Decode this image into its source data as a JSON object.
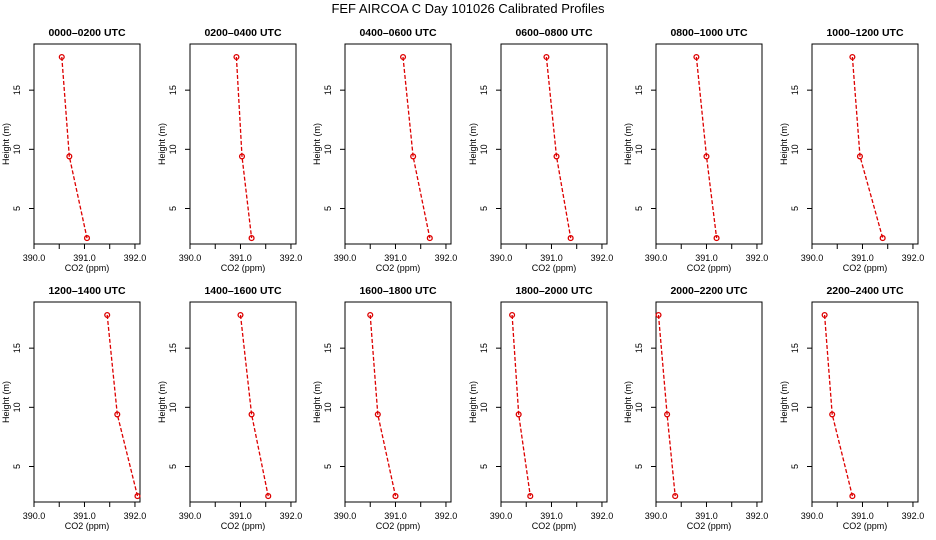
{
  "title": "FEF AIRCOA C  Day 101026  Calibrated Profiles",
  "chart_data": {
    "type": "line",
    "xlabel": "CO2 (ppm)",
    "ylabel": "Height (m)",
    "xlim": [
      390.0,
      392.1
    ],
    "ylim": [
      2.0,
      18.9
    ],
    "xticks": [
      390.0,
      390.5,
      391.0,
      391.5,
      392.0
    ],
    "xtick_labels": [
      "390.0",
      "",
      "391.0",
      "",
      "392.0"
    ],
    "yticks": [
      5,
      10,
      15
    ],
    "ytick_labels": [
      "5",
      "10",
      "15"
    ],
    "heights": [
      17.8,
      9.4,
      2.5
    ],
    "line_color": "#dd0000",
    "panels": [
      {
        "title": "0000–0200 UTC",
        "co2": [
          390.55,
          390.7,
          391.05
        ]
      },
      {
        "title": "0200–0400 UTC",
        "co2": [
          390.92,
          391.03,
          391.22
        ]
      },
      {
        "title": "0400–0600 UTC",
        "co2": [
          391.15,
          391.35,
          391.68
        ]
      },
      {
        "title": "0600–0800 UTC",
        "co2": [
          390.9,
          391.1,
          391.38
        ]
      },
      {
        "title": "0800–1000 UTC",
        "co2": [
          390.8,
          391.0,
          391.2
        ]
      },
      {
        "title": "1000–1200 UTC",
        "co2": [
          390.8,
          390.95,
          391.4
        ]
      },
      {
        "title": "1200–1400 UTC",
        "co2": [
          391.45,
          391.65,
          392.05
        ]
      },
      {
        "title": "1400–1600 UTC",
        "co2": [
          391.0,
          391.22,
          391.55
        ]
      },
      {
        "title": "1600–1800 UTC",
        "co2": [
          390.5,
          390.65,
          391.0
        ]
      },
      {
        "title": "1800–2000 UTC",
        "co2": [
          390.22,
          390.35,
          390.58
        ]
      },
      {
        "title": "2000–2200 UTC",
        "co2": [
          390.05,
          390.22,
          390.38
        ]
      },
      {
        "title": "2200–2400 UTC",
        "co2": [
          390.25,
          390.4,
          390.8
        ]
      }
    ]
  }
}
